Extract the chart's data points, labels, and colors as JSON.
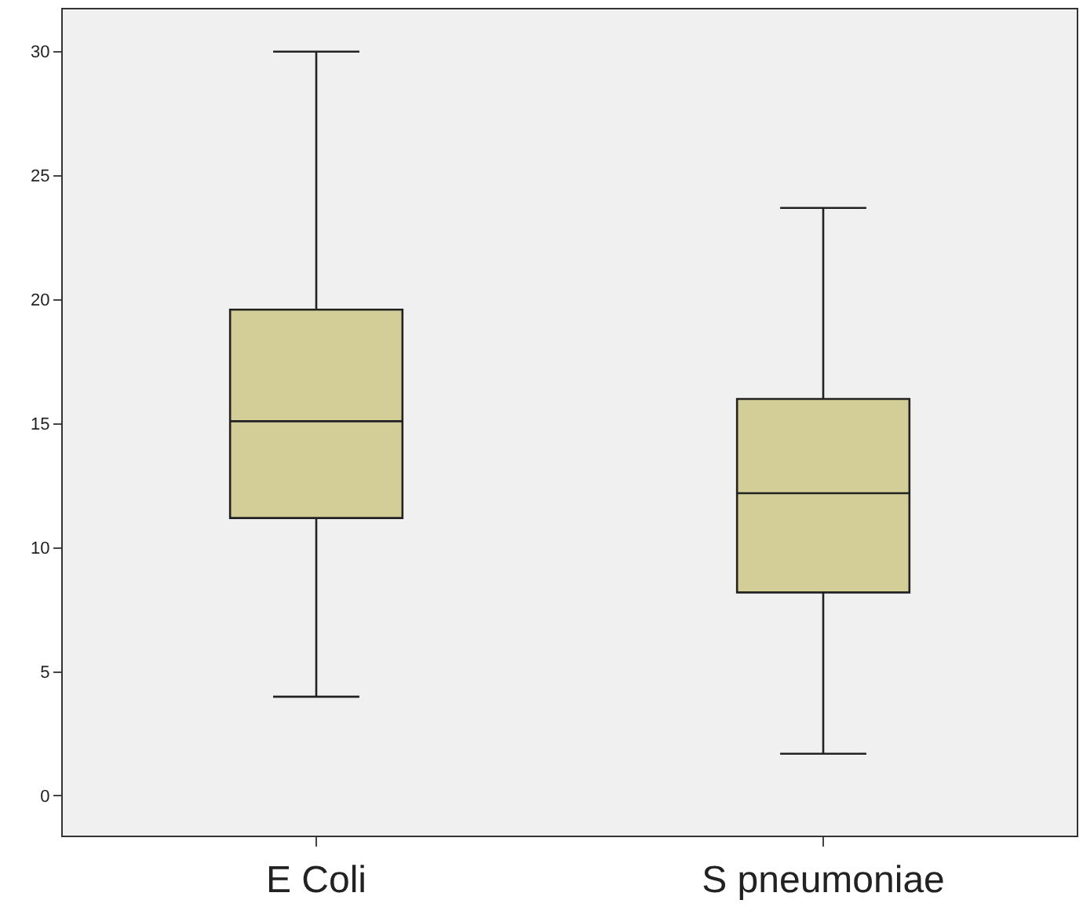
{
  "chart_data": {
    "type": "box",
    "categories": [
      "E Coli",
      "S pneumoniae"
    ],
    "boxes": [
      {
        "low": 4.0,
        "q1": 11.2,
        "median": 15.1,
        "q3": 19.6,
        "high": 30.0
      },
      {
        "low": 1.7,
        "q1": 8.2,
        "median": 12.2,
        "q3": 16.0,
        "high": 23.7
      }
    ],
    "color": "#d3ce97",
    "ylim": [
      -1.6,
      31.7
    ],
    "yticks": [
      0,
      5,
      10,
      15,
      20,
      25,
      30
    ],
    "grid": false
  }
}
